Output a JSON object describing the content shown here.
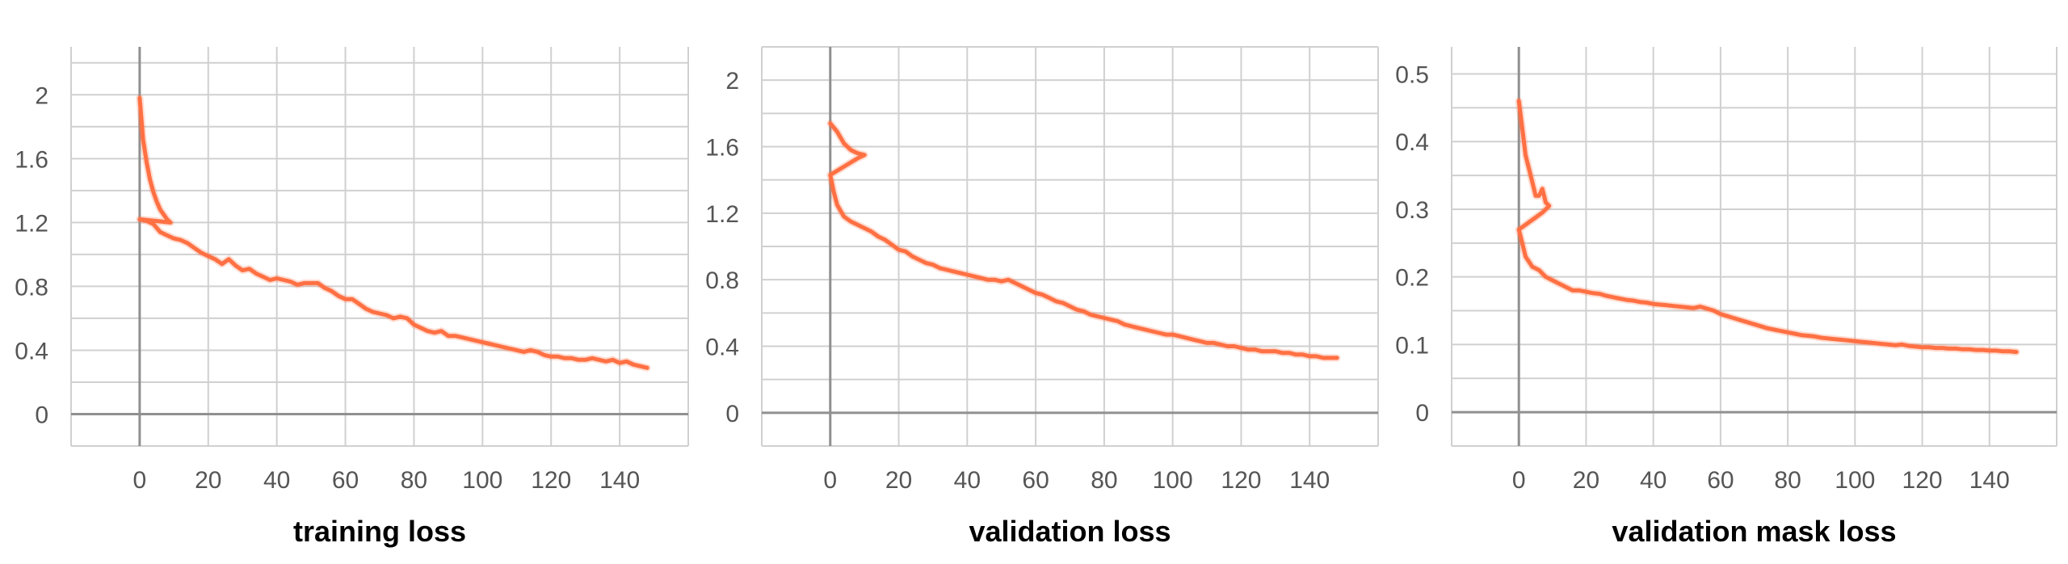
{
  "chart_data": [
    {
      "type": "line",
      "title": "training loss",
      "xlim": [
        -20,
        160
      ],
      "ylim": [
        -0.2,
        2.3
      ],
      "xticks": [
        "0",
        "20",
        "40",
        "60",
        "80",
        "100",
        "120",
        "140"
      ],
      "yticks": [
        "0",
        "0.4",
        "0.8",
        "1.2",
        "1.6",
        "2"
      ],
      "grid": true,
      "color": "#ff7043",
      "series": [
        {
          "raw": [
            [
              0,
              1.98
            ],
            [
              1,
              1.72
            ],
            [
              2,
              1.58
            ],
            [
              3,
              1.47
            ],
            [
              4,
              1.39
            ],
            [
              5,
              1.33
            ],
            [
              6,
              1.28
            ],
            [
              7,
              1.25
            ],
            [
              8,
              1.22
            ],
            [
              9,
              1.2
            ],
            [
              0,
              1.22
            ],
            [
              2,
              1.21
            ],
            [
              4,
              1.19
            ],
            [
              6,
              1.14
            ],
            [
              8,
              1.12
            ],
            [
              10,
              1.1
            ],
            [
              12,
              1.09
            ],
            [
              14,
              1.07
            ],
            [
              16,
              1.04
            ],
            [
              18,
              1.01
            ],
            [
              20,
              0.99
            ],
            [
              22,
              0.97
            ],
            [
              24,
              0.94
            ],
            [
              26,
              0.97
            ],
            [
              28,
              0.93
            ],
            [
              30,
              0.9
            ],
            [
              32,
              0.91
            ],
            [
              34,
              0.88
            ],
            [
              36,
              0.86
            ],
            [
              38,
              0.84
            ],
            [
              40,
              0.85
            ],
            [
              42,
              0.84
            ],
            [
              44,
              0.83
            ],
            [
              46,
              0.81
            ],
            [
              48,
              0.82
            ],
            [
              50,
              0.82
            ],
            [
              52,
              0.82
            ],
            [
              54,
              0.79
            ],
            [
              56,
              0.77
            ],
            [
              58,
              0.74
            ],
            [
              60,
              0.72
            ],
            [
              62,
              0.72
            ],
            [
              64,
              0.69
            ],
            [
              66,
              0.66
            ],
            [
              68,
              0.64
            ],
            [
              70,
              0.63
            ],
            [
              72,
              0.62
            ],
            [
              74,
              0.6
            ],
            [
              76,
              0.61
            ],
            [
              78,
              0.6
            ],
            [
              80,
              0.56
            ],
            [
              82,
              0.54
            ],
            [
              84,
              0.52
            ],
            [
              86,
              0.51
            ],
            [
              88,
              0.52
            ],
            [
              90,
              0.49
            ],
            [
              92,
              0.49
            ],
            [
              94,
              0.48
            ],
            [
              96,
              0.47
            ],
            [
              98,
              0.46
            ],
            [
              100,
              0.45
            ],
            [
              102,
              0.44
            ],
            [
              104,
              0.43
            ],
            [
              106,
              0.42
            ],
            [
              108,
              0.41
            ],
            [
              110,
              0.4
            ],
            [
              112,
              0.39
            ],
            [
              114,
              0.4
            ],
            [
              116,
              0.39
            ],
            [
              118,
              0.37
            ],
            [
              120,
              0.36
            ],
            [
              122,
              0.36
            ],
            [
              124,
              0.35
            ],
            [
              126,
              0.35
            ],
            [
              128,
              0.34
            ],
            [
              130,
              0.34
            ],
            [
              132,
              0.35
            ],
            [
              134,
              0.34
            ],
            [
              136,
              0.33
            ],
            [
              138,
              0.34
            ],
            [
              140,
              0.32
            ],
            [
              142,
              0.33
            ],
            [
              144,
              0.31
            ],
            [
              146,
              0.3
            ],
            [
              148,
              0.29
            ]
          ]
        }
      ]
    },
    {
      "type": "line",
      "title": "validation loss",
      "xlim": [
        -20,
        160
      ],
      "ylim": [
        -0.2,
        2.2
      ],
      "xticks": [
        "0",
        "20",
        "40",
        "60",
        "80",
        "100",
        "120",
        "140"
      ],
      "yticks": [
        "0",
        "0.4",
        "0.8",
        "1.2",
        "1.6",
        "2"
      ],
      "grid": true,
      "color": "#ff7043",
      "series": [
        {
          "raw": [
            [
              0,
              1.74
            ],
            [
              2,
              1.69
            ],
            [
              4,
              1.62
            ],
            [
              6,
              1.58
            ],
            [
              8,
              1.56
            ],
            [
              10,
              1.55
            ],
            [
              8,
              1.53
            ],
            [
              0,
              1.43
            ],
            [
              1,
              1.33
            ],
            [
              2,
              1.25
            ],
            [
              4,
              1.18
            ],
            [
              6,
              1.15
            ],
            [
              8,
              1.13
            ],
            [
              10,
              1.11
            ],
            [
              12,
              1.09
            ],
            [
              14,
              1.06
            ],
            [
              16,
              1.04
            ],
            [
              18,
              1.01
            ],
            [
              20,
              0.98
            ],
            [
              22,
              0.97
            ],
            [
              24,
              0.94
            ],
            [
              26,
              0.92
            ],
            [
              28,
              0.9
            ],
            [
              30,
              0.89
            ],
            [
              32,
              0.87
            ],
            [
              34,
              0.86
            ],
            [
              36,
              0.85
            ],
            [
              38,
              0.84
            ],
            [
              40,
              0.83
            ],
            [
              42,
              0.82
            ],
            [
              44,
              0.81
            ],
            [
              46,
              0.8
            ],
            [
              48,
              0.8
            ],
            [
              50,
              0.79
            ],
            [
              52,
              0.8
            ],
            [
              54,
              0.78
            ],
            [
              56,
              0.76
            ],
            [
              58,
              0.74
            ],
            [
              60,
              0.72
            ],
            [
              62,
              0.71
            ],
            [
              64,
              0.69
            ],
            [
              66,
              0.67
            ],
            [
              68,
              0.66
            ],
            [
              70,
              0.64
            ],
            [
              72,
              0.62
            ],
            [
              74,
              0.61
            ],
            [
              76,
              0.59
            ],
            [
              78,
              0.58
            ],
            [
              80,
              0.57
            ],
            [
              82,
              0.56
            ],
            [
              84,
              0.55
            ],
            [
              86,
              0.53
            ],
            [
              88,
              0.52
            ],
            [
              90,
              0.51
            ],
            [
              92,
              0.5
            ],
            [
              94,
              0.49
            ],
            [
              96,
              0.48
            ],
            [
              98,
              0.47
            ],
            [
              100,
              0.47
            ],
            [
              102,
              0.46
            ],
            [
              104,
              0.45
            ],
            [
              106,
              0.44
            ],
            [
              108,
              0.43
            ],
            [
              110,
              0.42
            ],
            [
              112,
              0.42
            ],
            [
              114,
              0.41
            ],
            [
              116,
              0.4
            ],
            [
              118,
              0.4
            ],
            [
              120,
              0.39
            ],
            [
              122,
              0.38
            ],
            [
              124,
              0.38
            ],
            [
              126,
              0.37
            ],
            [
              128,
              0.37
            ],
            [
              130,
              0.37
            ],
            [
              132,
              0.36
            ],
            [
              134,
              0.36
            ],
            [
              136,
              0.35
            ],
            [
              138,
              0.35
            ],
            [
              140,
              0.34
            ],
            [
              142,
              0.34
            ],
            [
              144,
              0.33
            ],
            [
              146,
              0.33
            ],
            [
              148,
              0.33
            ]
          ]
        }
      ]
    },
    {
      "type": "line",
      "title": "validation mask loss",
      "xlim": [
        -20,
        160
      ],
      "ylim": [
        -0.05,
        0.54
      ],
      "xticks": [
        "0",
        "20",
        "40",
        "60",
        "80",
        "100",
        "120",
        "140"
      ],
      "yticks": [
        "0",
        "0.1",
        "0.2",
        "0.3",
        "0.4",
        "0.5"
      ],
      "grid": true,
      "color": "#ff7043",
      "series": [
        {
          "raw": [
            [
              0,
              0.46
            ],
            [
              1,
              0.42
            ],
            [
              2,
              0.38
            ],
            [
              3,
              0.36
            ],
            [
              4,
              0.34
            ],
            [
              5,
              0.32
            ],
            [
              6,
              0.32
            ],
            [
              7,
              0.33
            ],
            [
              8,
              0.31
            ],
            [
              9,
              0.305
            ],
            [
              7,
              0.295
            ],
            [
              0,
              0.27
            ],
            [
              1,
              0.25
            ],
            [
              2,
              0.23
            ],
            [
              4,
              0.215
            ],
            [
              6,
              0.21
            ],
            [
              8,
              0.2
            ],
            [
              10,
              0.195
            ],
            [
              12,
              0.19
            ],
            [
              14,
              0.185
            ],
            [
              16,
              0.18
            ],
            [
              18,
              0.18
            ],
            [
              20,
              0.178
            ],
            [
              22,
              0.176
            ],
            [
              24,
              0.175
            ],
            [
              26,
              0.172
            ],
            [
              28,
              0.17
            ],
            [
              30,
              0.168
            ],
            [
              32,
              0.166
            ],
            [
              34,
              0.165
            ],
            [
              36,
              0.163
            ],
            [
              38,
              0.162
            ],
            [
              40,
              0.16
            ],
            [
              42,
              0.159
            ],
            [
              44,
              0.158
            ],
            [
              46,
              0.157
            ],
            [
              48,
              0.156
            ],
            [
              50,
              0.155
            ],
            [
              52,
              0.154
            ],
            [
              54,
              0.156
            ],
            [
              56,
              0.153
            ],
            [
              58,
              0.15
            ],
            [
              60,
              0.145
            ],
            [
              62,
              0.142
            ],
            [
              64,
              0.139
            ],
            [
              66,
              0.136
            ],
            [
              68,
              0.133
            ],
            [
              70,
              0.13
            ],
            [
              72,
              0.127
            ],
            [
              74,
              0.124
            ],
            [
              76,
              0.122
            ],
            [
              78,
              0.12
            ],
            [
              80,
              0.118
            ],
            [
              82,
              0.116
            ],
            [
              84,
              0.114
            ],
            [
              86,
              0.113
            ],
            [
              88,
              0.112
            ],
            [
              90,
              0.11
            ],
            [
              92,
              0.109
            ],
            [
              94,
              0.108
            ],
            [
              96,
              0.107
            ],
            [
              98,
              0.106
            ],
            [
              100,
              0.105
            ],
            [
              102,
              0.104
            ],
            [
              104,
              0.103
            ],
            [
              106,
              0.102
            ],
            [
              108,
              0.101
            ],
            [
              110,
              0.1
            ],
            [
              112,
              0.099
            ],
            [
              114,
              0.1
            ],
            [
              116,
              0.098
            ],
            [
              118,
              0.097
            ],
            [
              120,
              0.096
            ],
            [
              122,
              0.096
            ],
            [
              124,
              0.095
            ],
            [
              126,
              0.095
            ],
            [
              128,
              0.094
            ],
            [
              130,
              0.094
            ],
            [
              132,
              0.093
            ],
            [
              134,
              0.093
            ],
            [
              136,
              0.092
            ],
            [
              138,
              0.092
            ],
            [
              140,
              0.091
            ],
            [
              142,
              0.091
            ],
            [
              144,
              0.09
            ],
            [
              146,
              0.09
            ],
            [
              148,
              0.089
            ]
          ]
        }
      ]
    }
  ]
}
